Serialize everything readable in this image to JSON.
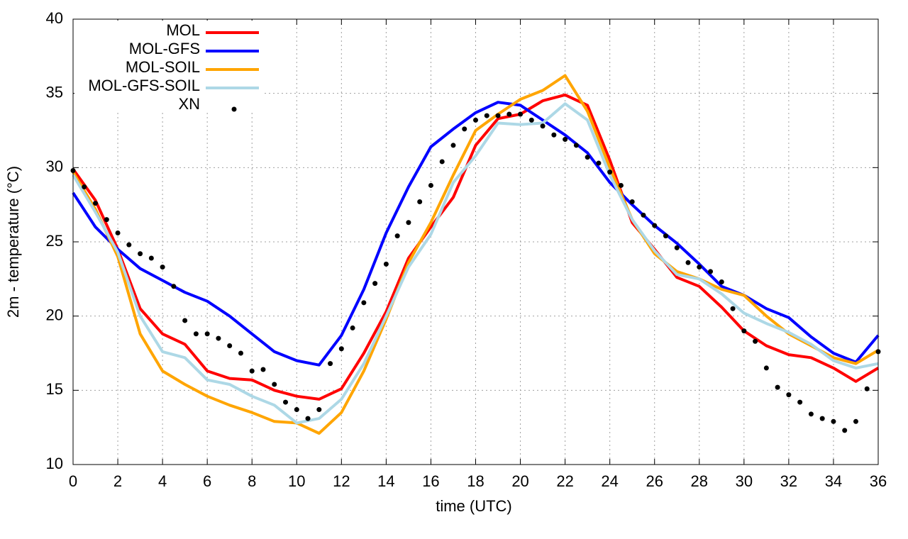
{
  "chart_data": {
    "type": "line",
    "xlabel": "time (UTC)",
    "ylabel": "2m - temperature (°C)",
    "xlim": [
      0,
      36
    ],
    "ylim": [
      10,
      40
    ],
    "xticks": [
      0,
      2,
      4,
      6,
      8,
      10,
      12,
      14,
      16,
      18,
      20,
      22,
      24,
      26,
      28,
      30,
      32,
      34,
      36
    ],
    "yticks": [
      10,
      15,
      20,
      25,
      30,
      35,
      40
    ],
    "grid": true,
    "legend": "upper-left",
    "x": [
      0,
      1,
      2,
      3,
      4,
      5,
      6,
      7,
      8,
      9,
      10,
      11,
      12,
      13,
      14,
      15,
      16,
      17,
      18,
      19,
      20,
      21,
      22,
      23,
      24,
      25,
      26,
      27,
      28,
      29,
      30,
      31,
      32,
      33,
      34,
      35,
      36
    ],
    "series": [
      {
        "name": "MOL",
        "color": "#ff0000",
        "style": "line",
        "values": [
          29.9,
          27.8,
          24.5,
          20.5,
          18.8,
          18.1,
          16.3,
          15.8,
          15.7,
          15.0,
          14.6,
          14.4,
          15.1,
          17.5,
          20.3,
          23.9,
          26.0,
          28.0,
          31.5,
          33.3,
          33.6,
          34.5,
          34.9,
          34.2,
          30.5,
          26.3,
          24.5,
          22.6,
          22.0,
          20.6,
          19.0,
          18.0,
          17.4,
          17.2,
          16.5,
          15.6,
          16.5
        ]
      },
      {
        "name": "MOL-GFS",
        "color": "#0000ff",
        "style": "line",
        "values": [
          28.3,
          26.0,
          24.5,
          23.2,
          22.4,
          21.6,
          21.0,
          20.0,
          18.8,
          17.6,
          17.0,
          16.7,
          18.7,
          21.8,
          25.6,
          28.7,
          31.4,
          32.6,
          33.7,
          34.4,
          34.2,
          33.2,
          32.2,
          31.0,
          29.0,
          27.5,
          26.1,
          24.9,
          23.5,
          22.0,
          21.4,
          20.5,
          19.9,
          18.6,
          17.5,
          16.9,
          18.7
        ]
      },
      {
        "name": "MOL-SOIL",
        "color": "#ffa500",
        "style": "line",
        "values": [
          29.7,
          27.2,
          24.0,
          18.8,
          16.3,
          15.4,
          14.6,
          14.0,
          13.5,
          12.9,
          12.8,
          12.1,
          13.5,
          16.3,
          19.8,
          23.6,
          26.3,
          29.5,
          32.5,
          33.6,
          34.6,
          35.2,
          36.2,
          33.8,
          30.0,
          26.5,
          24.2,
          23.0,
          22.5,
          21.8,
          21.4,
          20.0,
          18.8,
          18.0,
          17.2,
          16.8,
          17.7
        ]
      },
      {
        "name": "MOL-GFS-SOIL",
        "color": "#add8e6",
        "style": "line",
        "values": [
          29.5,
          27.0,
          24.3,
          20.0,
          17.6,
          17.2,
          15.7,
          15.4,
          14.6,
          14.0,
          12.8,
          13.1,
          14.4,
          16.8,
          20.0,
          23.3,
          25.5,
          29.0,
          30.8,
          33.0,
          32.9,
          33.0,
          34.3,
          33.2,
          29.5,
          26.5,
          24.4,
          22.8,
          22.5,
          21.5,
          20.2,
          19.5,
          18.9,
          18.1,
          17.0,
          16.5,
          16.8
        ]
      },
      {
        "name": "XN",
        "color": "#000000",
        "style": "points",
        "x": [
          0,
          0.5,
          1,
          1.5,
          2,
          2.5,
          3,
          3.5,
          4,
          4.5,
          5,
          5.5,
          6,
          6.5,
          7,
          7.5,
          8,
          8.5,
          9,
          9.5,
          10,
          10.5,
          11,
          11.5,
          12,
          12.5,
          13,
          13.5,
          14,
          14.5,
          15,
          15.5,
          16,
          16.5,
          17,
          17.5,
          18,
          18.5,
          19,
          19.5,
          20,
          20.5,
          21,
          21.5,
          22,
          22.5,
          23,
          23.5,
          24,
          24.5,
          25,
          25.5,
          26,
          26.5,
          27,
          27.5,
          28,
          28.5,
          29,
          29.5,
          30,
          30.5,
          31,
          31.5,
          32,
          32.5,
          33,
          33.5,
          34,
          34.5,
          35,
          35.5,
          36
        ],
        "values": [
          29.8,
          28.7,
          27.6,
          26.5,
          25.6,
          24.8,
          24.2,
          23.9,
          23.3,
          22.0,
          19.7,
          18.8,
          18.8,
          18.5,
          18.0,
          17.5,
          16.3,
          16.4,
          15.4,
          14.2,
          13.7,
          13.1,
          13.7,
          16.8,
          17.8,
          19.2,
          20.9,
          22.2,
          23.5,
          25.4,
          26.3,
          27.7,
          28.8,
          30.4,
          31.5,
          32.6,
          33.2,
          33.5,
          33.5,
          33.6,
          33.6,
          33.2,
          32.8,
          32.2,
          31.9,
          31.5,
          30.7,
          30.3,
          29.7,
          28.8,
          27.7,
          26.8,
          26.1,
          25.4,
          24.6,
          23.6,
          23.3,
          23.0,
          22.3,
          20.5,
          19.0,
          18.3,
          16.5,
          15.2,
          14.7,
          14.2,
          13.4,
          13.1,
          12.9,
          12.3,
          12.9,
          15.1,
          17.6
        ]
      }
    ]
  }
}
